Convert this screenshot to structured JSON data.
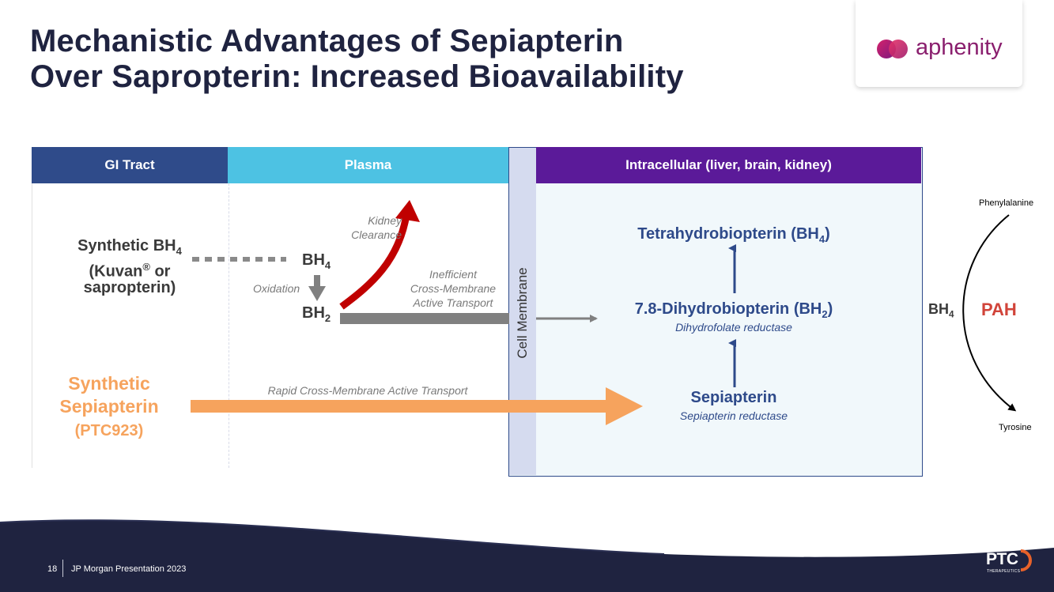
{
  "title": {
    "line1": "Mechanistic Advantages of Sepiapterin",
    "line2": "Over Sapropterin: Increased Bioavailability"
  },
  "logo": {
    "text": "aphenity",
    "icon": "aphenity-logo-icon"
  },
  "headers": {
    "gi": "GI Tract",
    "plasma": "Plasma",
    "intracellular": "Intracellular (liver, brain, kidney)"
  },
  "membrane_label": "Cell Membrane",
  "gi": {
    "bh4_name": "Synthetic BH",
    "bh4_sub": "4",
    "kuvan_a": "(Kuvan",
    "kuvan_reg": "®",
    "kuvan_b": " or",
    "sapropterin": "sapropterin)",
    "sep_line1": "Synthetic",
    "sep_line2": "Sepiapterin",
    "sep_line3": "(PTC923)"
  },
  "plasma": {
    "bh4": "BH",
    "bh4_sub": "4",
    "oxidation": "Oxidation",
    "bh2": "BH",
    "bh2_sub": "2",
    "kidney_1": "Kidney",
    "kidney_2": "Clearance",
    "ineff_1": "Inefficient",
    "ineff_2": "Cross-Membrane",
    "ineff_3": "Active Transport",
    "rapid": "Rapid Cross-Membrane Active Transport"
  },
  "intracellular": {
    "thb": "Tetrahydrobiopterin (BH",
    "thb_sub": "4",
    "thb_end": ")",
    "dhb": "7.8-Dihydrobiopterin (BH",
    "dhb_sub": "2",
    "dhb_end": ")",
    "dhb_enzyme": "Dihydrofolate reductase",
    "sep": "Sepiapterin",
    "sep_enzyme": "Sepiapterin reductase"
  },
  "pah": {
    "phe": "Phenylalanine",
    "tyr": "Tyrosine",
    "bh4": "BH",
    "bh4_sub": "4",
    "pah": "PAH"
  },
  "footer": {
    "page": "18",
    "event": "JP Morgan Presentation 2023",
    "brand": "PTC",
    "brand_sub": "THERAPEUTICS"
  },
  "colors": {
    "gi_header": "#2f4b8a",
    "plasma_header": "#4dc2e3",
    "intracellular_header": "#5b1a99",
    "membrane": "#d5dbef",
    "intracellular_bg": "#f1f8fb",
    "orange": "#f6a35d",
    "red": "#c00000",
    "gray": "#808080",
    "blue_text": "#2e4a8a",
    "pah_red": "#d1443a",
    "navy": "#1f2340"
  }
}
